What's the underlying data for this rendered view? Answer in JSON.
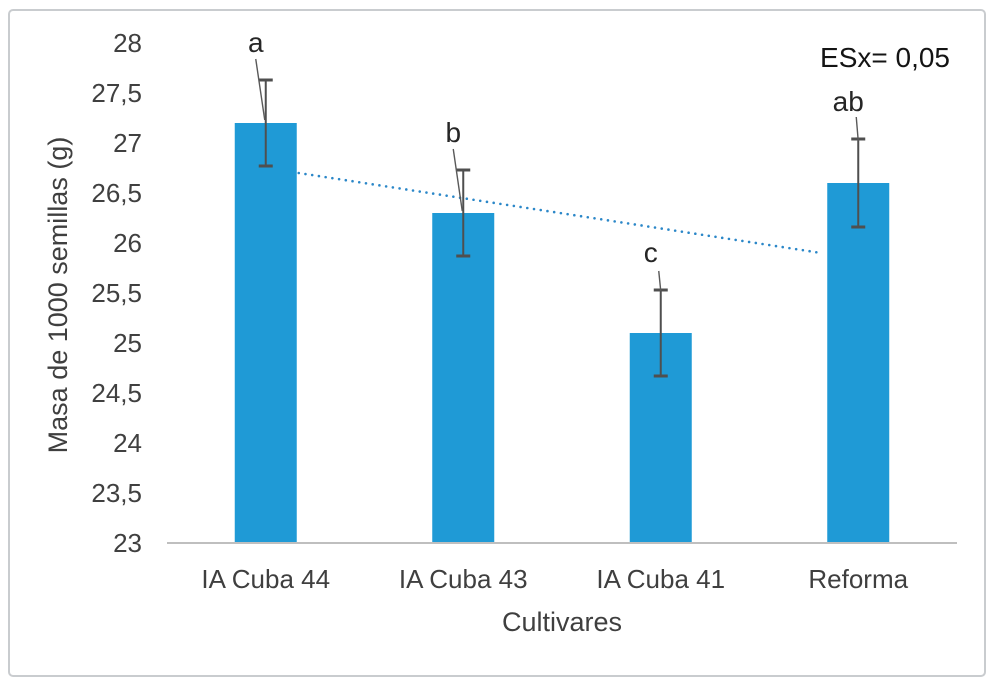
{
  "figure": {
    "background": "#ffffff",
    "border_color": "#c9cccf"
  },
  "chart_data": {
    "type": "bar",
    "title": "",
    "xlabel": "Cultivares",
    "ylabel": "Masa de 1000 semillas (g)",
    "annotation": "ESx= 0,05",
    "categories": [
      "IA Cuba 44",
      "IA Cuba 43",
      "IA Cuba 41",
      "Reforma"
    ],
    "values": [
      27.2,
      26.3,
      25.1,
      26.6
    ],
    "errors": [
      0.43,
      0.43,
      0.43,
      0.44
    ],
    "sig_letters": [
      "a",
      "b",
      "c",
      "ab"
    ],
    "ylim": [
      23,
      28
    ],
    "ytick_step": 0.5,
    "ytick_labels": [
      "23",
      "23,5",
      "24",
      "24,5",
      "25",
      "25,5",
      "26",
      "26,5",
      "27",
      "27,5",
      "28"
    ],
    "grid": false,
    "legend_position": "none",
    "trendline": {
      "style": "dotted",
      "y_start": 26.7,
      "y_end": 25.9
    },
    "colors": {
      "bar": "#1f9ad6",
      "trend": "#2b87c8",
      "error_bar": "#4f4f4f",
      "leader_line": "#595959",
      "axis_line": "#bfbfbf",
      "tick_text": "#404040",
      "annotation_text": "#141414"
    }
  }
}
